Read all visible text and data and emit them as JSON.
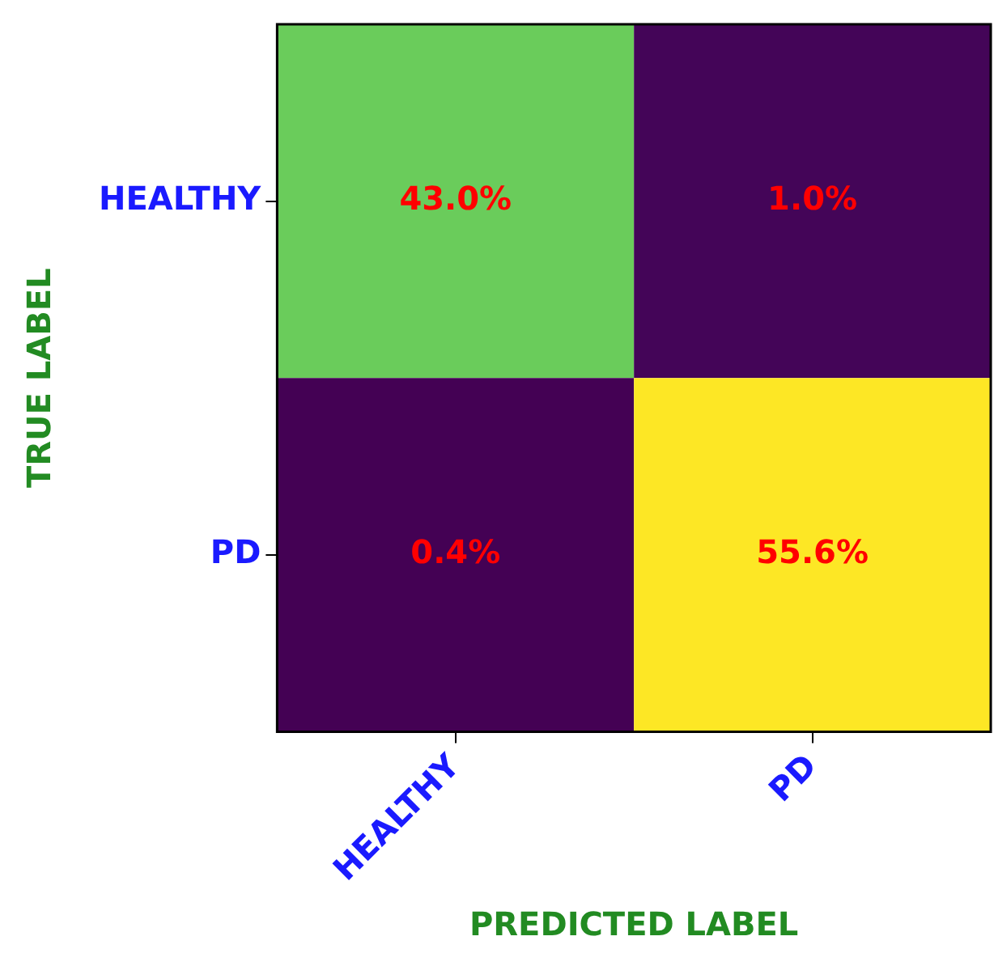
{
  "chart_data": {
    "type": "heatmap",
    "xlabel": "PREDICTED LABEL",
    "ylabel": "TRUE LABEL",
    "categories": [
      "HEALTHY",
      "PD"
    ],
    "y_categories": [
      "HEALTHY",
      "PD"
    ],
    "cells": [
      [
        43.0,
        1.0
      ],
      [
        0.4,
        55.6
      ]
    ],
    "cell_labels": [
      [
        "43.0%",
        "1.0%"
      ],
      [
        "0.4%",
        "55.6%"
      ]
    ],
    "grid": false,
    "legend": false
  }
}
